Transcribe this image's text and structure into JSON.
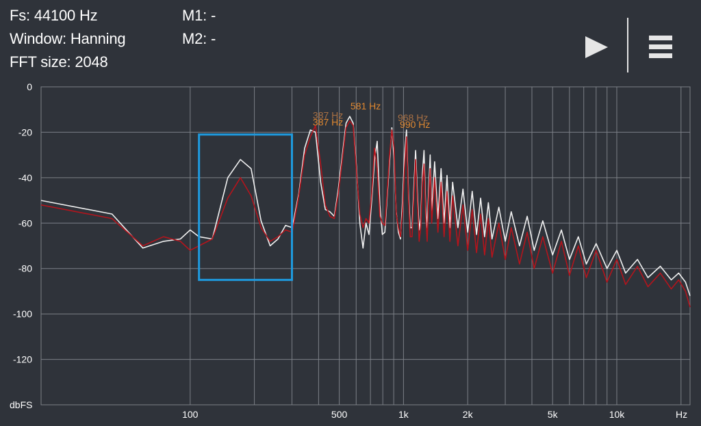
{
  "header": {
    "fs": "Fs: 44100 Hz",
    "window": "Window: Hanning",
    "fft_size": "FFT size: 2048",
    "m1": "M1: -",
    "m2": "M2: -"
  },
  "toolbar": {
    "play_icon": "play-icon",
    "menu_icon": "hamburger-menu-icon"
  },
  "colors": {
    "background": "#2f333a",
    "grid": "#7c8087",
    "white_trace": "#f2f2f2",
    "red_trace": "#b5141c",
    "highlight_box": "#1e9be0",
    "peak_label_dim": "#a87044",
    "peak_label_bright": "#e08830"
  },
  "chart_data": {
    "type": "line",
    "x_scale": "log",
    "xlim": [
      20,
      22050
    ],
    "ylim": [
      -140,
      0
    ],
    "y_unit_label": "dbFS",
    "x_unit_label": "Hz",
    "y_ticks": [
      {
        "value": 0,
        "label": "0"
      },
      {
        "value": -20,
        "label": "-20"
      },
      {
        "value": -40,
        "label": "-40"
      },
      {
        "value": -60,
        "label": "-60"
      },
      {
        "value": -80,
        "label": "-80"
      },
      {
        "value": -100,
        "label": "-100"
      },
      {
        "value": -120,
        "label": "-120"
      }
    ],
    "x_tick_labels": [
      {
        "value": 100,
        "label": "100"
      },
      {
        "value": 500,
        "label": "500"
      },
      {
        "value": 1000,
        "label": "1k"
      },
      {
        "value": 2000,
        "label": "2k"
      },
      {
        "value": 5000,
        "label": "5k"
      },
      {
        "value": 10000,
        "label": "10k"
      }
    ],
    "x_grid": [
      100,
      200,
      300,
      400,
      500,
      600,
      700,
      800,
      900,
      1000,
      2000,
      3000,
      4000,
      5000,
      6000,
      7000,
      8000,
      9000,
      10000,
      20000
    ],
    "highlight_region": {
      "x": [
        110,
        300
      ],
      "y": [
        -85,
        -21
      ]
    },
    "peak_labels": [
      {
        "text": "387 Hz",
        "x": 387,
        "y": -14,
        "tone": "dim"
      },
      {
        "text": "387 Hz",
        "x": 387,
        "y": -17,
        "tone": "bright"
      },
      {
        "text": "581 Hz",
        "x": 581,
        "y": -10,
        "tone": "bright"
      },
      {
        "text": "968 Hz",
        "x": 968,
        "y": -15,
        "tone": "dim"
      },
      {
        "text": "990 Hz",
        "x": 990,
        "y": -18,
        "tone": "bright"
      }
    ],
    "series": [
      {
        "color": "#f2f2f2",
        "points": [
          [
            20,
            -50
          ],
          [
            43,
            -56
          ],
          [
            60,
            -71
          ],
          [
            75,
            -68
          ],
          [
            90,
            -67
          ],
          [
            100,
            -63
          ],
          [
            110,
            -66
          ],
          [
            127,
            -67
          ],
          [
            150,
            -40
          ],
          [
            172,
            -32
          ],
          [
            193,
            -36
          ],
          [
            215,
            -59
          ],
          [
            237,
            -70
          ],
          [
            258,
            -67
          ],
          [
            280,
            -61
          ],
          [
            301,
            -62
          ],
          [
            323,
            -47
          ],
          [
            344,
            -27
          ],
          [
            366,
            -19
          ],
          [
            387,
            -20
          ],
          [
            409,
            -42
          ],
          [
            430,
            -54
          ],
          [
            452,
            -55
          ],
          [
            474,
            -57
          ],
          [
            495,
            -45
          ],
          [
            517,
            -30
          ],
          [
            538,
            -16
          ],
          [
            560,
            -13
          ],
          [
            581,
            -16
          ],
          [
            603,
            -36
          ],
          [
            624,
            -60
          ],
          [
            646,
            -71
          ],
          [
            667,
            -60
          ],
          [
            689,
            -65
          ],
          [
            710,
            -50
          ],
          [
            732,
            -32
          ],
          [
            753,
            -24
          ],
          [
            775,
            -52
          ],
          [
            796,
            -65
          ],
          [
            818,
            -64
          ],
          [
            839,
            -48
          ],
          [
            861,
            -33
          ],
          [
            882,
            -18
          ],
          [
            904,
            -32
          ],
          [
            925,
            -55
          ],
          [
            947,
            -64
          ],
          [
            968,
            -67
          ],
          [
            990,
            -50
          ],
          [
            1011,
            -30
          ],
          [
            1033,
            -19
          ],
          [
            1054,
            -45
          ],
          [
            1076,
            -62
          ],
          [
            1097,
            -62
          ],
          [
            1119,
            -44
          ],
          [
            1140,
            -28
          ],
          [
            1162,
            -47
          ],
          [
            1184,
            -63
          ],
          [
            1205,
            -58
          ],
          [
            1227,
            -38
          ],
          [
            1248,
            -28
          ],
          [
            1270,
            -52
          ],
          [
            1291,
            -62
          ],
          [
            1313,
            -45
          ],
          [
            1334,
            -30
          ],
          [
            1356,
            -55
          ],
          [
            1400,
            -33
          ],
          [
            1450,
            -58
          ],
          [
            1500,
            -36
          ],
          [
            1550,
            -60
          ],
          [
            1600,
            -39
          ],
          [
            1650,
            -62
          ],
          [
            1700,
            -42
          ],
          [
            1800,
            -62
          ],
          [
            1900,
            -45
          ],
          [
            2000,
            -64
          ],
          [
            2100,
            -46
          ],
          [
            2200,
            -65
          ],
          [
            2300,
            -49
          ],
          [
            2400,
            -66
          ],
          [
            2500,
            -51
          ],
          [
            2600,
            -67
          ],
          [
            2800,
            -53
          ],
          [
            3000,
            -68
          ],
          [
            3200,
            -55
          ],
          [
            3500,
            -70
          ],
          [
            3800,
            -57
          ],
          [
            4100,
            -72
          ],
          [
            4500,
            -59
          ],
          [
            5000,
            -74
          ],
          [
            5500,
            -63
          ],
          [
            6000,
            -76
          ],
          [
            6600,
            -66
          ],
          [
            7200,
            -78
          ],
          [
            8000,
            -69
          ],
          [
            9000,
            -80
          ],
          [
            10000,
            -72
          ],
          [
            11000,
            -82
          ],
          [
            12500,
            -76
          ],
          [
            14000,
            -84
          ],
          [
            16000,
            -79
          ],
          [
            18000,
            -85
          ],
          [
            19500,
            -82
          ],
          [
            21000,
            -86
          ],
          [
            22050,
            -92
          ]
        ]
      },
      {
        "color": "#b5141c",
        "points": [
          [
            20,
            -52
          ],
          [
            43,
            -58
          ],
          [
            60,
            -70
          ],
          [
            75,
            -66
          ],
          [
            90,
            -68
          ],
          [
            100,
            -72
          ],
          [
            110,
            -70
          ],
          [
            127,
            -67
          ],
          [
            150,
            -49
          ],
          [
            172,
            -40
          ],
          [
            193,
            -48
          ],
          [
            215,
            -62
          ],
          [
            237,
            -68
          ],
          [
            258,
            -66
          ],
          [
            280,
            -63
          ],
          [
            301,
            -64
          ],
          [
            323,
            -48
          ],
          [
            344,
            -30
          ],
          [
            366,
            -22
          ],
          [
            387,
            -17
          ],
          [
            409,
            -34
          ],
          [
            430,
            -52
          ],
          [
            452,
            -57
          ],
          [
            474,
            -58
          ],
          [
            495,
            -47
          ],
          [
            517,
            -32
          ],
          [
            538,
            -18
          ],
          [
            560,
            -15
          ],
          [
            581,
            -17
          ],
          [
            603,
            -38
          ],
          [
            624,
            -56
          ],
          [
            646,
            -62
          ],
          [
            667,
            -58
          ],
          [
            689,
            -60
          ],
          [
            710,
            -47
          ],
          [
            732,
            -27
          ],
          [
            753,
            -36
          ],
          [
            775,
            -57
          ],
          [
            796,
            -60
          ],
          [
            818,
            -61
          ],
          [
            839,
            -46
          ],
          [
            861,
            -30
          ],
          [
            882,
            -19
          ],
          [
            904,
            -27
          ],
          [
            925,
            -56
          ],
          [
            947,
            -62
          ],
          [
            968,
            -66
          ],
          [
            990,
            -55
          ],
          [
            1011,
            -36
          ],
          [
            1033,
            -22
          ],
          [
            1054,
            -48
          ],
          [
            1076,
            -66
          ],
          [
            1097,
            -66
          ],
          [
            1119,
            -48
          ],
          [
            1140,
            -32
          ],
          [
            1162,
            -51
          ],
          [
            1184,
            -68
          ],
          [
            1205,
            -62
          ],
          [
            1227,
            -42
          ],
          [
            1248,
            -34
          ],
          [
            1270,
            -56
          ],
          [
            1291,
            -68
          ],
          [
            1313,
            -49
          ],
          [
            1334,
            -36
          ],
          [
            1356,
            -60
          ],
          [
            1400,
            -40
          ],
          [
            1450,
            -64
          ],
          [
            1500,
            -42
          ],
          [
            1550,
            -66
          ],
          [
            1600,
            -46
          ],
          [
            1650,
            -68
          ],
          [
            1700,
            -48
          ],
          [
            1800,
            -70
          ],
          [
            1900,
            -52
          ],
          [
            2000,
            -72
          ],
          [
            2100,
            -54
          ],
          [
            2200,
            -73
          ],
          [
            2300,
            -56
          ],
          [
            2400,
            -74
          ],
          [
            2500,
            -58
          ],
          [
            2600,
            -75
          ],
          [
            2800,
            -60
          ],
          [
            3000,
            -76
          ],
          [
            3200,
            -62
          ],
          [
            3500,
            -78
          ],
          [
            3800,
            -64
          ],
          [
            4100,
            -80
          ],
          [
            4500,
            -66
          ],
          [
            5000,
            -82
          ],
          [
            5500,
            -68
          ],
          [
            6000,
            -83
          ],
          [
            6600,
            -70
          ],
          [
            7200,
            -84
          ],
          [
            8000,
            -72
          ],
          [
            9000,
            -86
          ],
          [
            10000,
            -76
          ],
          [
            11000,
            -87
          ],
          [
            12500,
            -79
          ],
          [
            14000,
            -88
          ],
          [
            16000,
            -82
          ],
          [
            18000,
            -89
          ],
          [
            19500,
            -85
          ],
          [
            21000,
            -90
          ],
          [
            22050,
            -97
          ]
        ]
      }
    ]
  }
}
